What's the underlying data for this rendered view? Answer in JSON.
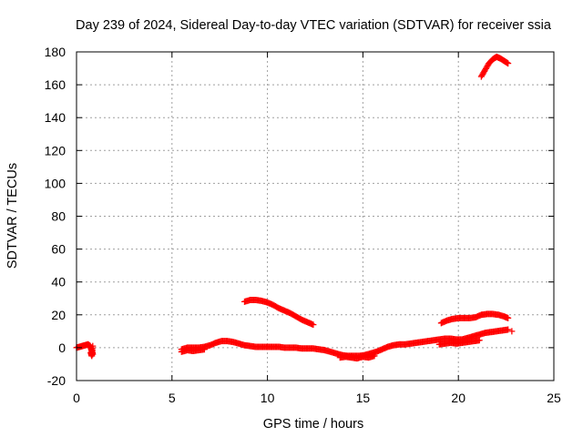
{
  "chart_data": {
    "type": "scatter",
    "title": "Day 239 of 2024, Sidereal Day-to-day VTEC variation (SDTVAR) for receiver ssia",
    "xlabel": "GPS time / hours",
    "ylabel": "SDTVAR / TECUs",
    "xlim": [
      0,
      25
    ],
    "ylim": [
      -20,
      180
    ],
    "xticks": [
      0,
      5,
      10,
      15,
      20,
      25
    ],
    "yticks": [
      -20,
      0,
      20,
      40,
      60,
      80,
      100,
      120,
      140,
      160,
      180
    ],
    "grid": true,
    "marker": "plus",
    "color": "#ff0000",
    "series": [
      {
        "name": "seg1",
        "x": [
          0.0,
          0.15,
          0.3,
          0.45,
          0.6,
          0.72,
          0.8,
          0.85
        ],
        "y": [
          0,
          0.5,
          1,
          1.5,
          2,
          1,
          -2,
          -4
        ]
      },
      {
        "name": "seg2",
        "x": [
          0.75,
          0.8,
          0.85
        ],
        "y": [
          -3,
          -5,
          1
        ]
      },
      {
        "name": "seg3",
        "x": [
          5.5,
          5.8,
          6.1,
          6.4,
          6.7,
          7.0,
          7.3,
          7.6,
          7.9,
          8.2,
          8.5,
          8.8,
          9.1,
          9.4,
          9.7,
          10.0,
          10.3,
          10.6,
          10.9,
          11.2,
          11.5,
          11.8,
          12.1,
          12.4,
          12.7,
          13.0
        ],
        "y": [
          -1,
          0,
          0,
          0,
          0.5,
          1.5,
          3,
          4,
          4,
          3.5,
          2.5,
          1.5,
          1,
          0.5,
          0.5,
          0.5,
          0.5,
          0.5,
          0,
          0,
          0,
          -0.5,
          -0.5,
          -0.5,
          -1,
          -1.5
        ]
      },
      {
        "name": "seg4",
        "x": [
          5.5,
          5.8,
          6.1,
          6.4,
          6.7
        ],
        "y": [
          -2.5,
          -1.5,
          -2,
          -1.5,
          -1
        ]
      },
      {
        "name": "seg5",
        "x": [
          8.8,
          9.1,
          9.4,
          9.7,
          10.0,
          10.3,
          10.6,
          10.9,
          11.2,
          11.5,
          11.8,
          12.1,
          12.4
        ],
        "y": [
          28,
          29,
          29,
          28.5,
          27.5,
          26,
          24,
          22.5,
          21,
          19,
          17,
          15.5,
          14
        ]
      },
      {
        "name": "seg6",
        "x": [
          13.0,
          13.3,
          13.6,
          13.9,
          14.2,
          14.5,
          14.8,
          15.1,
          15.4,
          15.7,
          16.0,
          16.3,
          16.6,
          16.9,
          17.2,
          17.5,
          17.8,
          18.1,
          18.4,
          18.7,
          19.0,
          19.3,
          19.6,
          19.9,
          20.2,
          20.5,
          20.8,
          21.1,
          21.4,
          21.7,
          22.0,
          22.3,
          22.6
        ],
        "y": [
          -1.5,
          -2.5,
          -3.5,
          -4.5,
          -5,
          -5,
          -5,
          -4.5,
          -3.5,
          -2.5,
          -1,
          0.5,
          1.5,
          2,
          2,
          2.5,
          3,
          3.5,
          4,
          4.5,
          5,
          5.5,
          5.5,
          5,
          5,
          6,
          7,
          8,
          9,
          9.5,
          10,
          10.5,
          11
        ]
      },
      {
        "name": "seg7",
        "x": [
          13.8,
          14.1,
          14.4,
          14.7,
          15.0,
          15.3,
          15.6
        ],
        "y": [
          -6,
          -5.5,
          -6,
          -6.5,
          -5.5,
          -6,
          -5
        ]
      },
      {
        "name": "seg8",
        "x": [
          19.0,
          19.3,
          19.6,
          19.9,
          20.2,
          20.5,
          20.8,
          21.1
        ],
        "y": [
          2,
          2.5,
          3,
          2.5,
          3,
          3.5,
          4,
          4.5
        ]
      },
      {
        "name": "seg9",
        "x": [
          22.8
        ],
        "y": [
          10
        ]
      },
      {
        "name": "seg10",
        "x": [
          19.1,
          19.4,
          19.7,
          20.0,
          20.3,
          20.6,
          20.9,
          21.2,
          21.5,
          21.8,
          22.1,
          22.4,
          22.6
        ],
        "y": [
          15,
          16.5,
          17.5,
          18,
          18,
          18,
          18.5,
          20,
          20.5,
          20.5,
          20,
          19,
          18
        ]
      },
      {
        "name": "seg11",
        "x": [
          21.2,
          21.4,
          21.6,
          21.8,
          22.0,
          22.2,
          22.4,
          22.6
        ],
        "y": [
          165,
          169,
          173,
          175.5,
          177,
          176,
          174.5,
          173
        ]
      }
    ]
  }
}
